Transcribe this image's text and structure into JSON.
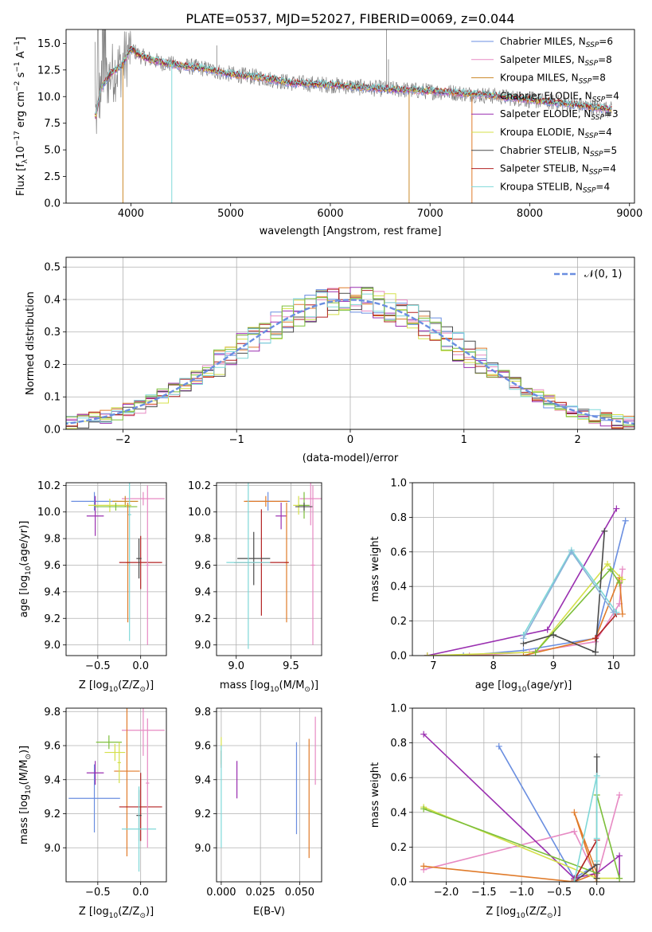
{
  "figure": {
    "title": "PLATE=0537, MJD=52027, FIBERID=0069, z=0.044"
  },
  "colors": {
    "chabrier_miles": "#6a8ee0",
    "salpeter_miles": "#e78ac3",
    "kroupa_miles": "#cc8a2a",
    "chabrier_elodie": "#8ab2d8",
    "salpeter_elodie": "#9a2fb0",
    "kroupa_elodie": "#d4e04a",
    "chabrier_stelib": "#4a4a4a",
    "salpeter_stelib": "#b22222",
    "kroupa_stelib": "#7fd8d8",
    "orange": "#e07b2a",
    "green": "#7cbf3a",
    "gaussian": "#6a8ee0",
    "grid": "#b0b0b0",
    "spectrum_gray": "#808080"
  },
  "chart_data": [
    {
      "id": "spectrum",
      "type": "line",
      "title": "PLATE=0537, MJD=52027, FIBERID=0069, z=0.044",
      "xlabel": "wavelength [Angstrom, rest frame]",
      "ylabel_main": "Flux [f",
      "ylabel_sub": "λ",
      "ylabel_rest": "10",
      "ylabel_exp": "−17",
      "ylabel_tail1": " erg cm",
      "ylabel_exp2": "−2",
      "ylabel_tail2": " s",
      "ylabel_exp3": "−1",
      "ylabel_tail3": " A",
      "ylabel_exp4": "−1",
      "ylabel_end": "]",
      "xlim": [
        3350,
        9050
      ],
      "ylim": [
        0,
        16.3
      ],
      "xticks": [
        "4000",
        "5000",
        "6000",
        "7000",
        "8000",
        "9000"
      ],
      "yticks": [
        "0.0",
        "2.5",
        "5.0",
        "7.5",
        "10.0",
        "12.5",
        "15.0"
      ],
      "legend_position": "top-right",
      "legend": [
        {
          "name": "Chabrier MILES, N",
          "sub": "SSP",
          "rest": "=6"
        },
        {
          "name": "Salpeter MILES, N",
          "sub": "SSP",
          "rest": "=8"
        },
        {
          "name": "Kroupa MILES, N",
          "sub": "SSP",
          "rest": "=8"
        },
        {
          "name": "Chabrier ELODIE, N",
          "sub": "SSP",
          "rest": "=4"
        },
        {
          "name": "Salpeter ELODIE, N",
          "sub": "SSP",
          "rest": "=3"
        },
        {
          "name": "Kroupa ELODIE, N",
          "sub": "SSP",
          "rest": "=4"
        },
        {
          "name": "Chabrier STELIB, N",
          "sub": "SSP",
          "rest": "=5"
        },
        {
          "name": "Salpeter STELIB, N",
          "sub": "SSP",
          "rest": "=4"
        },
        {
          "name": "Kroupa STELIB, N",
          "sub": "SSP",
          "rest": "=4"
        }
      ],
      "continuum": {
        "x": [
          3650,
          3700,
          3800,
          3900,
          4000,
          4100,
          4300,
          4500,
          4700,
          5000,
          5300,
          5600,
          6000,
          6400,
          6800,
          7200,
          7600,
          8000,
          8400,
          8800
        ],
        "y": [
          8.2,
          10.8,
          12.2,
          12.8,
          14.5,
          13.8,
          13.2,
          12.9,
          12.7,
          12.1,
          11.8,
          11.3,
          11.1,
          10.8,
          10.6,
          10.4,
          10.1,
          9.7,
          9.3,
          8.8
        ]
      },
      "drop_lines": [
        {
          "x": 3920,
          "color": "kroupa_miles"
        },
        {
          "x": 4410,
          "color": "kroupa_stelib"
        },
        {
          "x": 6790,
          "color": "kroupa_miles"
        },
        {
          "x": 7420,
          "color": "orange"
        }
      ]
    },
    {
      "id": "residuals",
      "type": "histogram",
      "xlabel": "(data-model)/error",
      "ylabel": "Normed distribution",
      "xlim": [
        -2.5,
        2.5
      ],
      "ylim": [
        0,
        0.53
      ],
      "xticks": [
        "−2",
        "−1",
        "0",
        "1",
        "2"
      ],
      "yticks": [
        "0.0",
        "0.1",
        "0.2",
        "0.3",
        "0.4",
        "0.5"
      ],
      "legend_position": "top-right",
      "legend_label": "𝒩(0, 1)",
      "bin_width": 0.1
    },
    {
      "id": "age_vs_Z",
      "type": "errorbar",
      "xlabel": "Z [log",
      "xlabel_sub": "10",
      "xlabel_rest": "(Z/Z",
      "xlabel_sub2": "⊙",
      "xlabel_end": ")]",
      "ylabel": "age  [log",
      "ylabel_sub": "10",
      "ylabel_rest": "(age/yr)]",
      "xlim": [
        -0.87,
        0.3
      ],
      "ylim": [
        8.92,
        10.22
      ],
      "xticks": [
        "−0.5",
        "0.0"
      ],
      "yticks": [
        "9.0",
        "9.2",
        "9.4",
        "9.6",
        "9.8",
        "10.0",
        "10.2"
      ],
      "points": [
        {
          "x": -0.54,
          "y": 10.08,
          "xerr": 0.27,
          "yerr": 0.07,
          "color": "chabrier_miles"
        },
        {
          "x": 0.03,
          "y": 10.1,
          "xerr": 0.25,
          "yerr": 0.05,
          "color": "salpeter_miles"
        },
        {
          "x": -0.18,
          "y": 10.08,
          "xerr": 0.15,
          "yerr": 0.04,
          "color": "kroupa_miles"
        },
        {
          "x": -0.13,
          "y": 9.98,
          "xerr": 0.02,
          "yerr": 0.95,
          "color": "kroupa_stelib"
        },
        {
          "x": -0.53,
          "y": 9.97,
          "xerr": 0.1,
          "yerr": 0.15,
          "color": "salpeter_elodie"
        },
        {
          "x": -0.36,
          "y": 10.05,
          "xerr": 0.25,
          "yerr": 0.05,
          "color": "kroupa_elodie"
        },
        {
          "x": -0.29,
          "y": 10.04,
          "xerr": 0.25,
          "yerr": 0.03,
          "color": "green"
        },
        {
          "x": -0.15,
          "y": 9.62,
          "xerr": 0.02,
          "yerr": 0.45,
          "color": "orange"
        },
        {
          "x": 0.0,
          "y": 9.62,
          "xerr": 0.25,
          "yerr": 0.2,
          "color": "salpeter_stelib"
        },
        {
          "x": -0.02,
          "y": 9.65,
          "xerr": 0.03,
          "yerr": 0.15,
          "color": "chabrier_stelib"
        },
        {
          "x": 0.08,
          "y": 9.6,
          "xerr": 0.02,
          "yerr": 0.6,
          "color": "salpeter_miles"
        }
      ]
    },
    {
      "id": "age_vs_mass",
      "type": "errorbar",
      "xlabel": "mass [log",
      "xlabel_sub": "10",
      "xlabel_rest": "(M/M",
      "xlabel_sub2": "⊙",
      "xlabel_end": ")]",
      "xlim": [
        8.82,
        9.78
      ],
      "ylim": [
        8.92,
        10.22
      ],
      "xticks": [
        "9.0",
        "9.5"
      ],
      "yticks": [
        "9.0",
        "9.2",
        "9.4",
        "9.6",
        "9.8",
        "10.0",
        "10.2"
      ],
      "points": [
        {
          "x": 9.29,
          "y": 10.08,
          "xerr": 0.2,
          "yerr": 0.07,
          "color": "chabrier_miles"
        },
        {
          "x": 9.68,
          "y": 10.1,
          "xerr": 0.1,
          "yerr": 0.2,
          "color": "salpeter_miles"
        },
        {
          "x": 9.27,
          "y": 10.08,
          "xerr": 0.2,
          "yerr": 0.04,
          "color": "orange"
        },
        {
          "x": 9.41,
          "y": 9.97,
          "xerr": 0.05,
          "yerr": 0.1,
          "color": "salpeter_elodie"
        },
        {
          "x": 9.57,
          "y": 10.05,
          "xerr": 0.05,
          "yerr": 0.07,
          "color": "kroupa_elodie"
        },
        {
          "x": 9.62,
          "y": 10.05,
          "xerr": 0.05,
          "yerr": 0.1,
          "color": "green"
        },
        {
          "x": 9.62,
          "y": 10.04,
          "xerr": 0.08,
          "yerr": 0.03,
          "color": "chabrier_stelib"
        },
        {
          "x": 9.46,
          "y": 9.62,
          "xerr": 0.02,
          "yerr": 0.45,
          "color": "orange"
        },
        {
          "x": 9.23,
          "y": 9.62,
          "xerr": 0.25,
          "yerr": 0.4,
          "color": "salpeter_stelib"
        },
        {
          "x": 9.16,
          "y": 9.65,
          "xerr": 0.15,
          "yerr": 0.2,
          "color": "chabrier_stelib"
        },
        {
          "x": 9.11,
          "y": 9.62,
          "xerr": 0.2,
          "yerr": 0.65,
          "color": "kroupa_stelib"
        },
        {
          "x": 9.7,
          "y": 9.6,
          "xerr": 0.02,
          "yerr": 0.6,
          "color": "salpeter_miles"
        }
      ]
    },
    {
      "id": "mass_weight_vs_age",
      "type": "line",
      "xlabel": "age  [log",
      "xlabel_sub": "10",
      "xlabel_rest": "(age/yr)]",
      "ylabel": "mass weight",
      "xlim": [
        6.65,
        10.35
      ],
      "ylim": [
        0,
        1
      ],
      "xticks": [
        "7",
        "8",
        "9",
        "10"
      ],
      "yticks": [
        "0.0",
        "0.2",
        "0.4",
        "0.6",
        "0.8",
        "1.0"
      ],
      "series": [
        {
          "color": "chabrier_miles",
          "x": [
            6.9,
            7.5,
            8.5,
            9.7,
            10.2
          ],
          "y": [
            0.0,
            0.0,
            0.03,
            0.1,
            0.78
          ]
        },
        {
          "color": "salpeter_miles",
          "x": [
            6.9,
            7.6,
            8.6,
            9.7,
            10.1,
            10.15
          ],
          "y": [
            0.0,
            0.0,
            0.02,
            0.08,
            0.3,
            0.5
          ]
        },
        {
          "color": "orange",
          "x": [
            6.9,
            8.5,
            9.7,
            10.1,
            10.15
          ],
          "y": [
            0.0,
            0.0,
            0.1,
            0.45,
            0.24
          ]
        },
        {
          "color": "salpeter_elodie",
          "x": [
            6.9,
            8.9,
            10.05
          ],
          "y": [
            0.0,
            0.15,
            0.85
          ]
        },
        {
          "color": "kroupa_elodie",
          "x": [
            6.9,
            8.7,
            9.9,
            10.15
          ],
          "y": [
            0.0,
            0.02,
            0.53,
            0.44
          ]
        },
        {
          "color": "green",
          "x": [
            8.7,
            9.95,
            10.1
          ],
          "y": [
            0.02,
            0.5,
            0.42
          ]
        },
        {
          "color": "chabrier_stelib",
          "x": [
            8.5,
            9.0,
            9.7,
            9.85
          ],
          "y": [
            0.07,
            0.12,
            0.02,
            0.72
          ]
        },
        {
          "color": "salpeter_stelib",
          "x": [
            9.7,
            10.05
          ],
          "y": [
            0.1,
            0.24
          ]
        },
        {
          "color": "kroupa_stelib",
          "x": [
            8.5,
            9.3,
            10.05
          ],
          "y": [
            0.12,
            0.61,
            0.25
          ]
        },
        {
          "color": "chabrier_elodie",
          "x": [
            8.5,
            9.3,
            10.0
          ],
          "y": [
            0.1,
            0.6,
            0.25
          ]
        }
      ]
    },
    {
      "id": "mass_vs_Z",
      "type": "errorbar",
      "xlabel": "Z [log",
      "xlabel_sub": "10",
      "xlabel_rest": "(Z/Z",
      "xlabel_sub2": "⊙",
      "xlabel_end": ")]",
      "ylabel": "mass [log",
      "ylabel_sub": "10",
      "ylabel_rest": "(M/M",
      "ylabel_sub2": "⊙",
      "ylabel_end": ")]",
      "xlim": [
        -0.87,
        0.3
      ],
      "ylim": [
        8.8,
        9.82
      ],
      "xticks": [
        "−0.5",
        "0.0"
      ],
      "yticks": [
        "9.0",
        "9.2",
        "9.4",
        "9.6",
        "9.8"
      ],
      "points": [
        {
          "x": -0.54,
          "y": 9.29,
          "xerr": 0.3,
          "yerr": 0.2,
          "color": "chabrier_miles"
        },
        {
          "x": 0.03,
          "y": 9.69,
          "xerr": 0.25,
          "yerr": 0.15,
          "color": "salpeter_miles"
        },
        {
          "x": -0.16,
          "y": 9.45,
          "xerr": 0.15,
          "yerr": 0.5,
          "color": "orange"
        },
        {
          "x": -0.53,
          "y": 9.44,
          "xerr": 0.1,
          "yerr": 0.07,
          "color": "salpeter_elodie"
        },
        {
          "x": -0.37,
          "y": 9.62,
          "xerr": 0.15,
          "yerr": 0.04,
          "color": "green"
        },
        {
          "x": -0.3,
          "y": 9.56,
          "xerr": 0.12,
          "yerr": 0.05,
          "color": "kroupa_elodie"
        },
        {
          "x": -0.25,
          "y": 9.5,
          "xerr": 0.02,
          "yerr": 0.12,
          "color": "kroupa_elodie"
        },
        {
          "x": 0.0,
          "y": 9.24,
          "xerr": 0.25,
          "yerr": 0.2,
          "color": "salpeter_stelib"
        },
        {
          "x": -0.02,
          "y": 9.19,
          "xerr": 0.03,
          "yerr": 0.15,
          "color": "chabrier_stelib"
        },
        {
          "x": -0.02,
          "y": 9.11,
          "xerr": 0.2,
          "yerr": 0.25,
          "color": "kroupa_stelib"
        },
        {
          "x": 0.08,
          "y": 9.38,
          "xerr": 0.02,
          "yerr": 0.38,
          "color": "salpeter_miles"
        }
      ]
    },
    {
      "id": "mass_vs_ebv",
      "type": "errorbar",
      "xlabel": "E(B-V)",
      "xlim": [
        -0.003,
        0.064
      ],
      "ylim": [
        8.8,
        9.82
      ],
      "xticks": [
        "0.000",
        "0.025",
        "0.050"
      ],
      "yticks": [
        "9.0",
        "9.2",
        "9.4",
        "9.6",
        "9.8"
      ],
      "points": [
        {
          "x": 0.0,
          "y": 9.57,
          "xerr": 0,
          "yerr": 0.08,
          "color": "kroupa_elodie"
        },
        {
          "x": 0.0,
          "y": 9.52,
          "xerr": 0,
          "yerr": 0.05,
          "color": "salpeter_stelib"
        },
        {
          "x": 0.0,
          "y": 9.3,
          "xerr": 0,
          "yerr": 0.3,
          "color": "kroupa_stelib"
        },
        {
          "x": 0.01,
          "y": 9.4,
          "xerr": 0,
          "yerr": 0.11,
          "color": "salpeter_elodie"
        },
        {
          "x": 0.048,
          "y": 9.35,
          "xerr": 0,
          "yerr": 0.27,
          "color": "chabrier_miles"
        },
        {
          "x": 0.056,
          "y": 9.29,
          "xerr": 0,
          "yerr": 0.35,
          "color": "orange"
        },
        {
          "x": 0.06,
          "y": 9.57,
          "xerr": 0,
          "yerr": 0.2,
          "color": "salpeter_miles"
        }
      ]
    },
    {
      "id": "mass_weight_vs_Z",
      "type": "line",
      "xlabel": "Z [log",
      "xlabel_sub": "10",
      "xlabel_rest": "(Z/Z",
      "xlabel_sub2": "⊙",
      "xlabel_end": ")]",
      "ylabel": "mass weight",
      "xlim": [
        -2.45,
        0.5
      ],
      "ylim": [
        0,
        1
      ],
      "xticks": [
        "−2.0",
        "−1.5",
        "−1.0",
        "−0.5",
        "0.0"
      ],
      "yticks": [
        "0.0",
        "0.2",
        "0.4",
        "0.6",
        "0.8",
        "1.0"
      ],
      "series": [
        {
          "color": "chabrier_miles",
          "x": [
            -1.3,
            -0.3,
            0.0,
            0.0
          ],
          "y": [
            0.78,
            0.02,
            0.1,
            0.02
          ]
        },
        {
          "color": "salpeter_miles",
          "x": [
            -2.3,
            -0.3,
            0.0,
            0.3
          ],
          "y": [
            0.07,
            0.29,
            0.02,
            0.5
          ]
        },
        {
          "color": "orange",
          "x": [
            -2.3,
            -0.3,
            0.0,
            -0.3,
            0.0
          ],
          "y": [
            0.09,
            0.0,
            0.05,
            0.4,
            0.0
          ]
        },
        {
          "color": "salpeter_elodie",
          "x": [
            -2.3,
            -0.3,
            0.0,
            0.3,
            0.3
          ],
          "y": [
            0.85,
            0.02,
            0.05,
            0.15,
            0.02
          ]
        },
        {
          "color": "kroupa_elodie",
          "x": [
            -2.3,
            0.0,
            0.3
          ],
          "y": [
            0.43,
            0.02,
            0.02
          ]
        },
        {
          "color": "green",
          "x": [
            -2.3,
            0.0,
            0.0,
            0.3
          ],
          "y": [
            0.42,
            0.05,
            0.5,
            0.02
          ]
        },
        {
          "color": "chabrier_stelib",
          "x": [
            -0.3,
            0.0,
            0.0,
            0.0
          ],
          "y": [
            0.0,
            0.1,
            0.72,
            0.02
          ]
        },
        {
          "color": "salpeter_stelib",
          "x": [
            -0.3,
            0.0
          ],
          "y": [
            0.01,
            0.24
          ]
        },
        {
          "color": "kroupa_stelib",
          "x": [
            -0.3,
            0.0,
            0.0,
            0.0
          ],
          "y": [
            0.0,
            0.61,
            0.25,
            0.12
          ]
        }
      ]
    }
  ]
}
